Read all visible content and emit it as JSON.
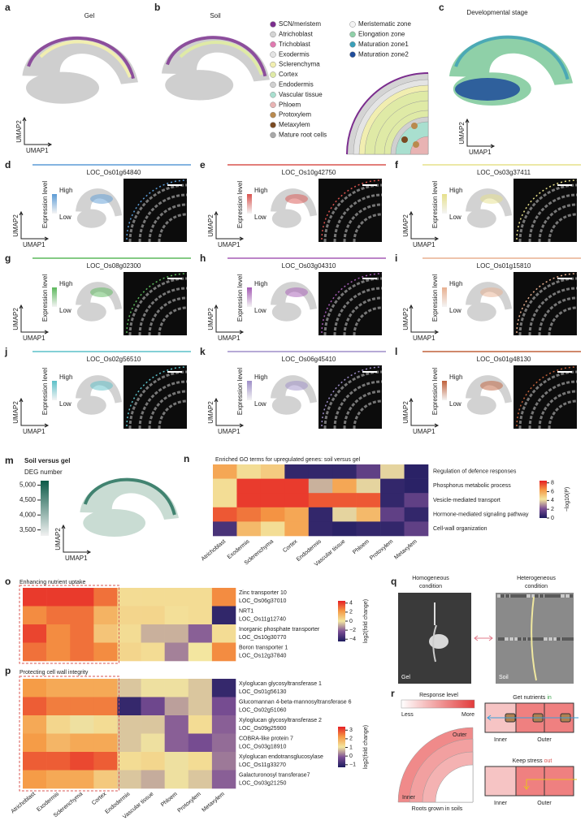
{
  "umap": {
    "x_label": "UMAP1",
    "y_label": "UMAP2"
  },
  "top": {
    "a_letter": "a",
    "a_title": "Gel",
    "b_letter": "b",
    "b_title": "Soil",
    "c_letter": "c",
    "c_title": "Developmental stage",
    "cell_types": [
      {
        "name": "SCN/meristem",
        "color": "#7b2d8e"
      },
      {
        "name": "Atrichoblast",
        "color": "#d4d4d4"
      },
      {
        "name": "Trichoblast",
        "color": "#e07ab0"
      },
      {
        "name": "Exodermis",
        "color": "#e4e4e4"
      },
      {
        "name": "Sclerenchyma",
        "color": "#f1eeb0"
      },
      {
        "name": "Cortex",
        "color": "#dfeaa6"
      },
      {
        "name": "Endodermis",
        "color": "#d0d0d0"
      },
      {
        "name": "Vascular tissue",
        "color": "#a9dfcf"
      },
      {
        "name": "Phloem",
        "color": "#e8b3b3"
      },
      {
        "name": "Protoxylem",
        "color": "#b98a4e"
      },
      {
        "name": "Metaxylem",
        "color": "#7a4a22"
      },
      {
        "name": "Mature root cells",
        "color": "#a8a8a8"
      }
    ],
    "zones": [
      {
        "name": "Meristematic zone",
        "color": "#f4f4f4"
      },
      {
        "name": "Elongation zone",
        "color": "#8fd0a8"
      },
      {
        "name": "Maturation zone1",
        "color": "#3a9fb8"
      },
      {
        "name": "Maturation zone2",
        "color": "#1f4c9a"
      }
    ]
  },
  "expression": {
    "label": "Expression level",
    "high": "High",
    "low": "Low"
  },
  "genes": [
    {
      "letter": "d",
      "name": "LOC_Os01g64840",
      "color": "#5b9bd5"
    },
    {
      "letter": "e",
      "name": "LOC_Os10g42750",
      "color": "#d9534f"
    },
    {
      "letter": "f",
      "name": "LOC_Os03g37411",
      "color": "#e6e08a"
    },
    {
      "letter": "g",
      "name": "LOC_Os08g02300",
      "color": "#5cb85c"
    },
    {
      "letter": "h",
      "name": "LOC_Os03g04310",
      "color": "#a55bb6"
    },
    {
      "letter": "i",
      "name": "LOC_Os01g15810",
      "color": "#e8b090"
    },
    {
      "letter": "j",
      "name": "LOC_Os02g56510",
      "color": "#5bc0c8"
    },
    {
      "letter": "k",
      "name": "LOC_Os06g45410",
      "color": "#9e8ec8"
    },
    {
      "letter": "l",
      "name": "LOC_Os01g48130",
      "color": "#c0603a"
    }
  ],
  "m": {
    "letter": "m",
    "title": "Soil versus gel",
    "colorbar_label": "DEG number",
    "clim": [
      3300,
      5150
    ],
    "ticks": [
      {
        "value": 5000,
        "label": "5,000"
      },
      {
        "value": 4500,
        "label": "4,500"
      },
      {
        "value": 4000,
        "label": "4,000"
      },
      {
        "value": 3500,
        "label": "3,500"
      }
    ]
  },
  "n": {
    "letter": "n",
    "title": "Enriched GO terms for upregulated genes: soil versus gel",
    "rows": [
      "Regulation of defence responses",
      "Phosphorus metabolic process",
      "Vesicle-mediated transport",
      "Hormone-mediated signaling pathway",
      "Cell-wall organization"
    ],
    "columns": [
      "Atrichoblast",
      "Exodermis",
      "Sclerenchyma",
      "Cortex",
      "Endodermis",
      "Vascular tissue",
      "Phloem",
      "Protoxylem",
      "Metaxylem"
    ],
    "values": [
      [
        6,
        4.5,
        5,
        0.5,
        0.5,
        0.5,
        1.5,
        4,
        0.3
      ],
      [
        4.5,
        8,
        8,
        8,
        3.5,
        6,
        4,
        0.5,
        0.3
      ],
      [
        4.5,
        8,
        8,
        8,
        7.5,
        7.5,
        7.5,
        0.5,
        1.5
      ],
      [
        7.5,
        7,
        6.5,
        6,
        0.5,
        4,
        5.5,
        1.5,
        0.5
      ],
      [
        1,
        5.5,
        4.5,
        6,
        0.5,
        0.3,
        0.5,
        0.5,
        1.5
      ]
    ],
    "clim": [
      0,
      8.5
    ],
    "ticks": [
      8,
      6,
      4,
      2,
      0
    ],
    "colorbar_label": "−log10(P)"
  },
  "o": {
    "letter": "o",
    "title": "Enhancing nutrient uptake",
    "rows": [
      {
        "name": "Zinc transporter 10",
        "id": "LOC_Os06g37010"
      },
      {
        "name": "NRT1",
        "id": "LOC_Os11g12740"
      },
      {
        "name": "Inorganic phosphate transporter",
        "id": "LOC_Os10g30770"
      },
      {
        "name": "Boron transporter 1",
        "id": "LOC_Os12g37840"
      }
    ],
    "values": [
      [
        4,
        4,
        4,
        3,
        0.3,
        0.3,
        0.3,
        0.3,
        2.5
      ],
      [
        2.5,
        3,
        3,
        1.5,
        0.5,
        0.5,
        0.2,
        0.3,
        -4
      ],
      [
        3.8,
        2.5,
        3,
        1,
        0.3,
        -0.8,
        -0.8,
        -2,
        0.3
      ],
      [
        3,
        2.5,
        3,
        2.5,
        0.5,
        0.3,
        -1.5,
        0,
        2.5
      ]
    ],
    "clim": [
      -4.5,
      4.5
    ],
    "ticks": [
      4,
      2,
      0,
      {
        "value": -2,
        "label": "−2"
      },
      {
        "value": -4,
        "label": "−4"
      }
    ],
    "colorbar_label": "log2(fold change)"
  },
  "p": {
    "letter": "p",
    "title": "Protecting cell wall integrity",
    "rows": [
      {
        "name": "Xyloglucan glycosyltransferase 1",
        "id": "LOC_Os01g56130"
      },
      {
        "name": "Glucomannan 4-beta-mannosyltransferase 6",
        "id": "LOC_Os02g51060"
      },
      {
        "name": "Xyloglucan glycosyltransferase 2",
        "id": "LOC_Os09g25900"
      },
      {
        "name": "COBRA-like protein 7",
        "id": "LOC_Os03g18910"
      },
      {
        "name": "Xyloglucan endotransglucosylase",
        "id": "LOC_Os11g33270"
      },
      {
        "name": "Galacturonosyl transferase7",
        "id": "LOC_Os03g21250"
      }
    ],
    "columns": [
      "Atrichoblast",
      "Exodermis",
      "Sclerenchyma",
      "Cortex",
      "Endodermis",
      "Vascular tissue",
      "Phloem",
      "Protoxylem",
      "Metaxylem"
    ],
    "values": [
      [
        2.2,
        2,
        2,
        2,
        0.8,
        1,
        1,
        0.8,
        -1
      ],
      [
        2.8,
        2.5,
        2.5,
        2.5,
        -1,
        -0.3,
        0.5,
        0.8,
        -0.2
      ],
      [
        2,
        1.3,
        1,
        1.2,
        0.8,
        0.8,
        0,
        1.2,
        0
      ],
      [
        2.2,
        1.8,
        2,
        2,
        0.8,
        1,
        0,
        -0.2,
        0.1
      ],
      [
        2.8,
        2.8,
        3,
        2.8,
        1.2,
        1.3,
        1,
        1.2,
        0.2
      ],
      [
        2.2,
        2,
        2,
        1.5,
        0.8,
        0.6,
        1,
        0.8,
        0
      ]
    ],
    "clim": [
      -1.3,
      3.4
    ],
    "ticks": [
      3,
      2,
      1,
      0,
      {
        "value": -1,
        "label": "−1"
      }
    ],
    "colorbar_label": "log2(fold change)"
  },
  "q": {
    "letter": "q",
    "homogeneous": [
      "Homogeneous",
      "condition"
    ],
    "heterogeneous": [
      "Heterogeneous",
      "condition"
    ],
    "gel": "Gel",
    "soil": "Soil"
  },
  "r": {
    "letter": "r",
    "response_level": "Response level",
    "less": "Less",
    "more": "More",
    "outer": "Outer",
    "inner": "Inner",
    "roots_caption": "Roots grown in soils",
    "get_nutrients": "Get nutrients",
    "in": "in",
    "keep_stress": "Keep stress",
    "out": "out",
    "box_inner": "Inner",
    "box_outer": "Outer"
  }
}
